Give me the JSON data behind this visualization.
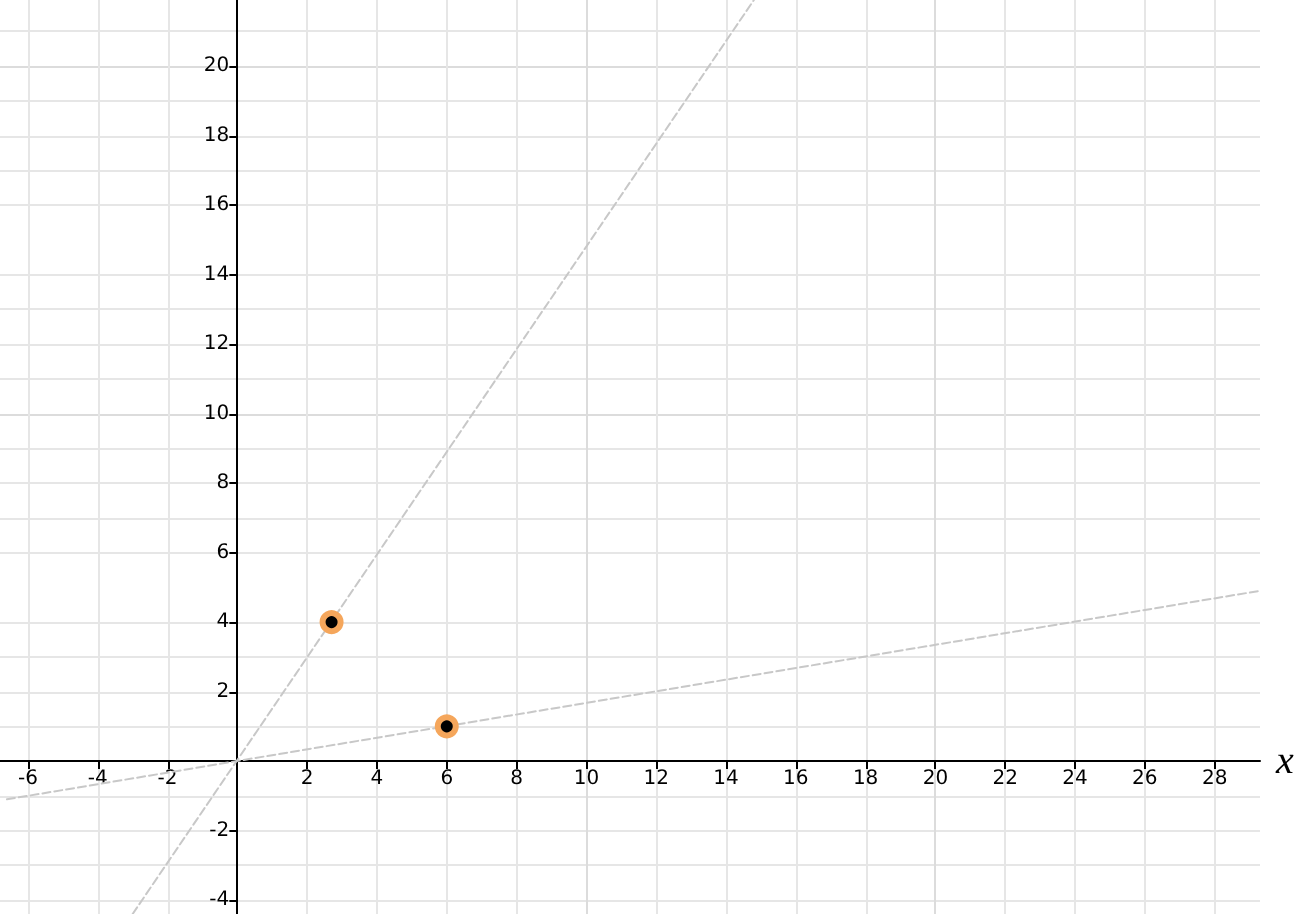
{
  "chart_data": {
    "type": "scatter",
    "xlabel": "x",
    "xlim": [
      -6.8,
      29.3
    ],
    "ylim": [
      -4.4,
      21.9
    ],
    "xticks": [
      -6,
      -4,
      -2,
      {
        "value": 0,
        "label": null
      },
      2,
      4,
      6,
      8,
      10,
      12,
      14,
      16,
      18,
      20,
      22,
      24,
      26,
      28
    ],
    "yticks": [
      -4,
      -2,
      {
        "value": 0,
        "label": null
      },
      2,
      4,
      6,
      8,
      10,
      12,
      14,
      16,
      18,
      20
    ],
    "grid": true,
    "series": [
      {
        "type": "line",
        "x": [
          -3,
          14.8
        ],
        "values": [
          -4.4,
          21.9
        ],
        "color": "#c8c8c8",
        "line_style": "dashed",
        "marker": "none"
      },
      {
        "type": "line",
        "x": [
          -6.6,
          29.3
        ],
        "values": [
          -1.1,
          4.9
        ],
        "color": "#c8c8c8",
        "line_style": "dashed",
        "marker": "none"
      },
      {
        "type": "scatter",
        "x": [
          2.7,
          6
        ],
        "values": [
          4,
          1
        ],
        "color": "#f5a65b",
        "marker": "circle"
      }
    ]
  }
}
